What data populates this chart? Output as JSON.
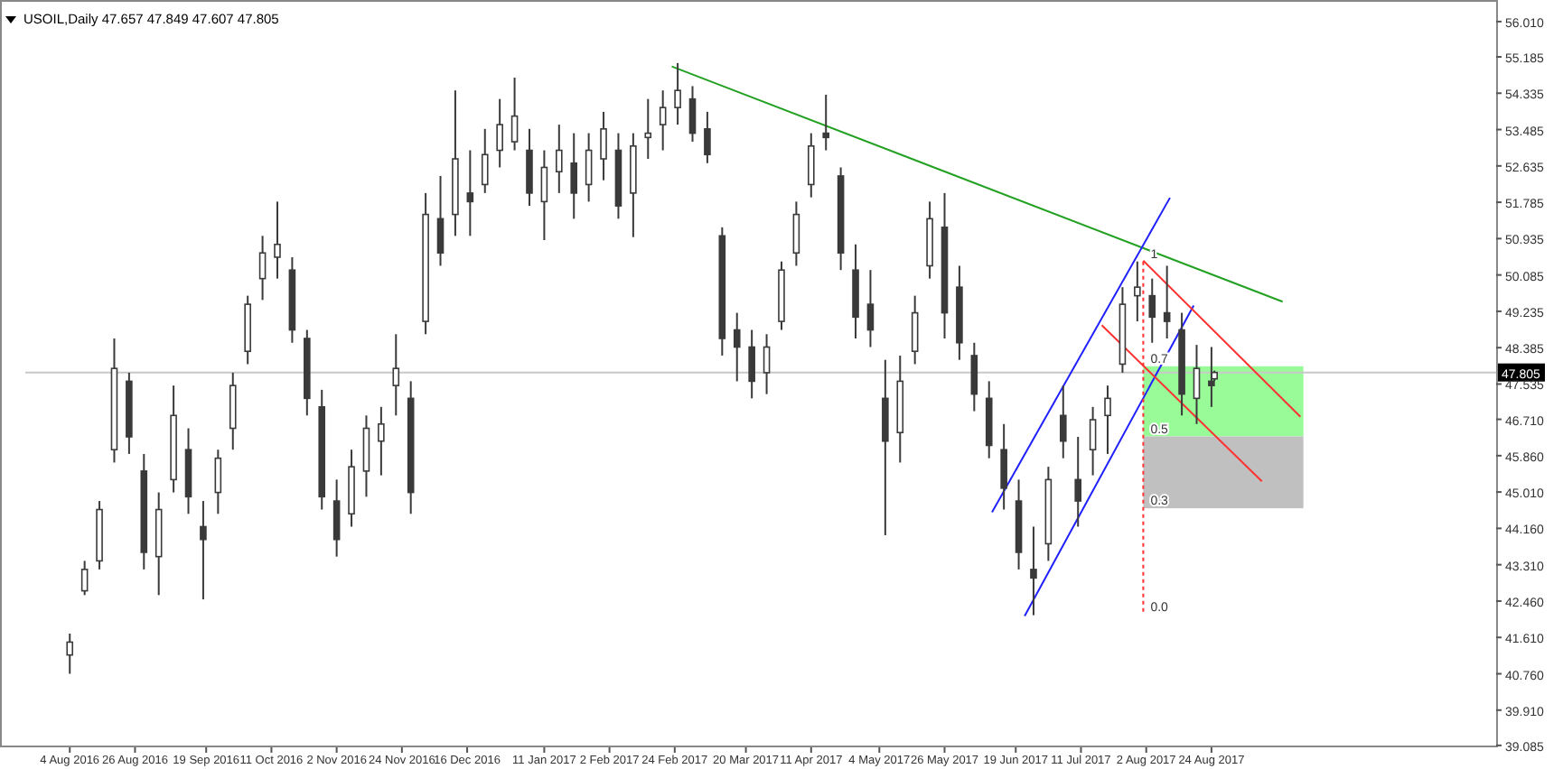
{
  "chart_data": {
    "type": "candlestick",
    "title": "USOIL,Daily 47.657 47.849 47.607 47.805",
    "color": "#3a3a3a",
    "x": [
      "2016-08-04",
      "2016-08-09",
      "2016-08-14",
      "2016-08-19",
      "2016-08-24",
      "2016-08-29",
      "2016-09-03",
      "2016-09-08",
      "2016-09-13",
      "2016-09-18",
      "2016-09-23",
      "2016-09-28",
      "2016-10-03",
      "2016-10-08",
      "2016-10-13",
      "2016-10-18",
      "2016-10-23",
      "2016-10-28",
      "2016-11-02",
      "2016-11-07",
      "2016-11-12",
      "2016-11-17",
      "2016-11-22",
      "2016-11-27",
      "2016-12-02",
      "2016-12-07",
      "2016-12-12",
      "2016-12-17",
      "2016-12-22",
      "2016-12-27",
      "2017-01-01",
      "2017-01-06",
      "2017-01-11",
      "2017-01-16",
      "2017-01-21",
      "2017-01-26",
      "2017-01-31",
      "2017-02-05",
      "2017-02-10",
      "2017-02-15",
      "2017-02-20",
      "2017-02-25",
      "2017-03-02",
      "2017-03-07",
      "2017-03-12",
      "2017-03-17",
      "2017-03-22",
      "2017-03-27",
      "2017-04-01",
      "2017-04-06",
      "2017-04-11",
      "2017-04-16",
      "2017-04-21",
      "2017-04-26",
      "2017-05-01",
      "2017-05-06",
      "2017-05-11",
      "2017-05-16",
      "2017-05-21",
      "2017-05-26",
      "2017-05-31",
      "2017-06-05",
      "2017-06-10",
      "2017-06-15",
      "2017-06-20",
      "2017-06-25",
      "2017-06-30",
      "2017-07-05",
      "2017-07-10",
      "2017-07-15",
      "2017-07-20",
      "2017-07-25",
      "2017-07-30",
      "2017-08-04",
      "2017-08-09",
      "2017-08-14",
      "2017-08-19",
      "2017-08-24",
      "2017-08-25"
    ],
    "ohlc": [
      [
        41.2,
        41.7,
        40.76,
        41.5
      ],
      [
        42.7,
        43.4,
        42.6,
        43.2
      ],
      [
        43.4,
        44.8,
        43.2,
        44.6
      ],
      [
        46.0,
        48.6,
        45.7,
        47.9
      ],
      [
        47.6,
        47.8,
        45.9,
        46.3
      ],
      [
        45.5,
        45.9,
        43.2,
        43.6
      ],
      [
        43.5,
        45.0,
        42.6,
        44.6
      ],
      [
        45.3,
        47.5,
        45.0,
        46.8
      ],
      [
        46.0,
        46.5,
        44.5,
        44.9
      ],
      [
        44.2,
        44.8,
        42.5,
        43.9
      ],
      [
        45.0,
        46.0,
        44.5,
        45.8
      ],
      [
        46.5,
        47.8,
        46.0,
        47.5
      ],
      [
        48.3,
        49.6,
        48.0,
        49.4
      ],
      [
        50.0,
        51.0,
        49.5,
        50.6
      ],
      [
        50.5,
        51.8,
        50.0,
        50.8
      ],
      [
        50.2,
        50.5,
        48.5,
        48.8
      ],
      [
        48.6,
        48.8,
        46.8,
        47.2
      ],
      [
        47.0,
        47.4,
        44.6,
        44.9
      ],
      [
        44.8,
        45.3,
        43.5,
        43.9
      ],
      [
        44.5,
        46.0,
        44.2,
        45.6
      ],
      [
        45.5,
        46.8,
        44.9,
        46.5
      ],
      [
        46.2,
        47.0,
        45.4,
        46.6
      ],
      [
        47.5,
        48.7,
        46.8,
        47.9
      ],
      [
        47.2,
        47.6,
        44.5,
        45.0
      ],
      [
        49.0,
        52.0,
        48.7,
        51.5
      ],
      [
        51.4,
        52.4,
        50.3,
        50.6
      ],
      [
        51.5,
        54.4,
        51.0,
        52.8
      ],
      [
        52.0,
        53.0,
        51.0,
        51.8
      ],
      [
        52.2,
        53.5,
        52.0,
        52.9
      ],
      [
        53.0,
        54.2,
        52.6,
        53.6
      ],
      [
        53.2,
        54.7,
        53.0,
        53.8
      ],
      [
        53.0,
        53.5,
        51.7,
        52.0
      ],
      [
        51.8,
        53.0,
        50.9,
        52.6
      ],
      [
        52.5,
        53.6,
        52.0,
        53.0
      ],
      [
        52.7,
        53.4,
        51.4,
        52.0
      ],
      [
        52.2,
        53.4,
        51.8,
        53.0
      ],
      [
        52.8,
        53.9,
        52.3,
        53.5
      ],
      [
        53.0,
        53.4,
        51.4,
        51.7
      ],
      [
        52.0,
        53.4,
        50.97,
        53.1
      ],
      [
        53.3,
        54.2,
        52.8,
        53.4
      ],
      [
        53.6,
        54.4,
        53.0,
        54.0
      ],
      [
        54.0,
        55.04,
        53.6,
        54.4
      ],
      [
        54.2,
        54.5,
        53.2,
        53.4
      ],
      [
        53.5,
        53.9,
        52.7,
        52.9
      ],
      [
        51.0,
        51.2,
        48.2,
        48.6
      ],
      [
        48.8,
        49.2,
        47.6,
        48.4
      ],
      [
        48.4,
        48.8,
        47.2,
        47.6
      ],
      [
        47.8,
        48.7,
        47.3,
        48.4
      ],
      [
        49.0,
        50.4,
        48.8,
        50.2
      ],
      [
        50.6,
        51.8,
        50.3,
        51.5
      ],
      [
        52.2,
        53.4,
        51.9,
        53.1
      ],
      [
        53.4,
        54.3,
        53.0,
        53.3
      ],
      [
        52.4,
        52.6,
        50.2,
        50.6
      ],
      [
        50.2,
        50.8,
        48.6,
        49.1
      ],
      [
        49.4,
        50.2,
        48.4,
        48.8
      ],
      [
        47.2,
        48.1,
        44.0,
        46.2
      ],
      [
        46.4,
        48.2,
        45.7,
        47.6
      ],
      [
        48.3,
        49.6,
        48.0,
        49.2
      ],
      [
        50.3,
        51.8,
        50.0,
        51.4
      ],
      [
        51.2,
        52.0,
        48.6,
        49.2
      ],
      [
        49.8,
        50.3,
        48.1,
        48.5
      ],
      [
        48.2,
        48.5,
        46.9,
        47.3
      ],
      [
        47.2,
        47.6,
        45.8,
        46.1
      ],
      [
        46.0,
        46.6,
        44.6,
        45.1
      ],
      [
        44.8,
        45.3,
        43.2,
        43.6
      ],
      [
        43.2,
        44.2,
        42.13,
        43.0
      ],
      [
        43.8,
        45.6,
        43.4,
        45.3
      ],
      [
        46.8,
        47.5,
        45.8,
        46.2
      ],
      [
        45.3,
        46.3,
        44.2,
        44.8
      ],
      [
        46.0,
        47.0,
        45.4,
        46.7
      ],
      [
        46.8,
        47.5,
        45.9,
        47.2
      ],
      [
        48.0,
        49.8,
        47.8,
        49.4
      ],
      [
        49.6,
        50.4,
        49.0,
        49.8
      ],
      [
        49.6,
        50.0,
        48.5,
        49.1
      ],
      [
        49.2,
        50.3,
        48.6,
        49.0
      ],
      [
        48.8,
        49.2,
        46.8,
        47.3
      ],
      [
        47.2,
        48.45,
        46.6,
        47.9
      ],
      [
        47.6,
        48.4,
        47.0,
        47.5
      ],
      [
        47.657,
        47.849,
        47.607,
        47.805
      ]
    ],
    "series": [
      {
        "type": "bar",
        "color": "#98fb98",
        "x": [
          "2017-08-28"
        ],
        "values": [
          1.64
        ],
        "base": [
          46.31
        ]
      },
      {
        "type": "bar",
        "color": "#c0c0c0",
        "x": [
          "2017-08-28"
        ],
        "values": [
          1.68
        ],
        "base": [
          44.63
        ]
      },
      {
        "type": "line",
        "color": "#22a022",
        "x": [
          "2017-02-23",
          "2017-09-17"
        ],
        "values": [
          54.96,
          49.46
        ]
      },
      {
        "type": "line",
        "color": "#2020ff",
        "x": [
          "2017-06-11",
          "2017-08-10"
        ],
        "values": [
          44.54,
          51.89
        ]
      },
      {
        "type": "line",
        "color": "#2020ff",
        "x": [
          "2017-06-22",
          "2017-08-18"
        ],
        "values": [
          42.11,
          49.37
        ]
      },
      {
        "type": "line",
        "color": "#ff3030",
        "x": [
          "2017-08-01",
          "2017-09-23"
        ],
        "values": [
          50.42,
          46.77
        ]
      },
      {
        "type": "line",
        "color": "#ff3030",
        "x": [
          "2017-07-18",
          "2017-09-10"
        ],
        "values": [
          48.91,
          45.26
        ]
      },
      {
        "type": "line",
        "color": "#ff3030",
        "line_style": "dotted",
        "x": [
          "2017-08-01",
          "2017-08-01"
        ],
        "values": [
          50.4,
          42.15
        ]
      }
    ],
    "annotations": [
      {
        "text": "1",
        "x": "2017-08-01",
        "y": 50.4
      },
      {
        "text": "0.7",
        "x": "2017-08-01",
        "y": 47.95
      },
      {
        "text": "0.5",
        "x": "2017-08-01",
        "y": 46.31
      },
      {
        "text": "0.3",
        "x": "2017-08-01",
        "y": 44.63
      },
      {
        "text": "0.0",
        "x": "2017-08-01",
        "y": 42.15
      }
    ],
    "ref_lines": [
      {
        "axis": "y",
        "value": 47.805,
        "label": "47.805",
        "color": "#c8c8c8"
      }
    ],
    "xlim": [
      "2016-07-20",
      "2017-11-28"
    ],
    "xticks": [
      {
        "value": "2016-08-04",
        "label": "4 Aug 2016"
      },
      {
        "value": "2016-08-26",
        "label": "26 Aug 2016"
      },
      {
        "value": "2016-09-19",
        "label": "19 Sep 2016"
      },
      {
        "value": "2016-10-11",
        "label": "11 Oct 2016"
      },
      {
        "value": "2016-11-02",
        "label": "2 Nov 2016"
      },
      {
        "value": "2016-11-24",
        "label": "24 Nov 2016"
      },
      {
        "value": "2016-12-16",
        "label": "16 Dec 2016"
      },
      {
        "value": "2017-01-11",
        "label": "11 Jan 2017"
      },
      {
        "value": "2017-02-02",
        "label": "2 Feb 2017"
      },
      {
        "value": "2017-02-24",
        "label": "24 Feb 2017"
      },
      {
        "value": "2017-03-20",
        "label": "20 Mar 2017"
      },
      {
        "value": "2017-04-11",
        "label": "11 Apr 2017"
      },
      {
        "value": "2017-05-04",
        "label": "4 May 2017"
      },
      {
        "value": "2017-05-26",
        "label": "26 May 2017"
      },
      {
        "value": "2017-06-19",
        "label": "19 Jun 2017"
      },
      {
        "value": "2017-07-11",
        "label": "11 Jul 2017"
      },
      {
        "value": "2017-08-02",
        "label": "2 Aug 2017"
      },
      {
        "value": "2017-08-24",
        "label": "24 Aug 2017"
      }
    ],
    "ylim": [
      39.04,
      56.43
    ],
    "yticks": [
      {
        "value": 39.085,
        "label": "39.085"
      },
      {
        "value": 39.91,
        "label": "39.910"
      },
      {
        "value": 40.76,
        "label": "40.760"
      },
      {
        "value": 41.61,
        "label": "41.610"
      },
      {
        "value": 42.46,
        "label": "42.460"
      },
      {
        "value": 43.31,
        "label": "43.310"
      },
      {
        "value": 44.16,
        "label": "44.160"
      },
      {
        "value": 45.01,
        "label": "45.010"
      },
      {
        "value": 45.86,
        "label": "45.860"
      },
      {
        "value": 46.71,
        "label": "46.710"
      },
      {
        "value": 47.535,
        "label": "47.535"
      },
      {
        "value": 48.385,
        "label": "48.385"
      },
      {
        "value": 49.235,
        "label": "49.235"
      },
      {
        "value": 50.085,
        "label": "50.085"
      },
      {
        "value": 50.935,
        "label": "50.935"
      },
      {
        "value": 51.785,
        "label": "51.785"
      },
      {
        "value": 52.635,
        "label": "52.635"
      },
      {
        "value": 53.485,
        "label": "53.485"
      },
      {
        "value": 54.335,
        "label": "54.335"
      },
      {
        "value": 55.185,
        "label": "55.185"
      },
      {
        "value": 56.01,
        "label": "56.010"
      }
    ]
  }
}
